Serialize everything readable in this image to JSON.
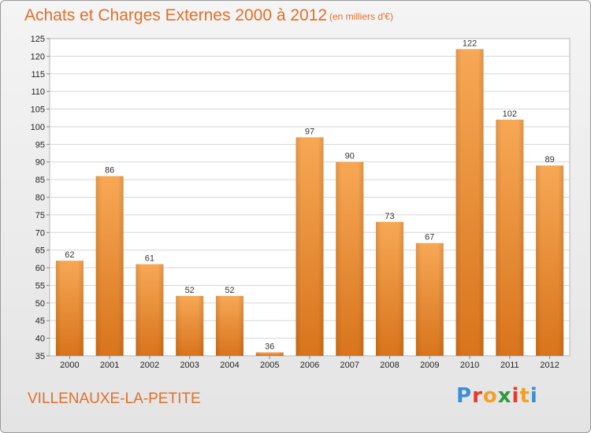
{
  "header": {
    "title": "Achats et Charges Externes 2000 à 2012",
    "subtitle": "(en milliers d'€)"
  },
  "footer": {
    "commune": "VILLENAUXE-LA-PETITE",
    "logo_letters": [
      "P",
      "r",
      "o",
      "x",
      "i",
      "t",
      "i"
    ],
    "logo_colors": [
      "#3b8fd6",
      "#e8392b",
      "#f2a124",
      "#2d9a3e",
      "#e8392b",
      "#f2a124",
      "#3b8fd6"
    ]
  },
  "chart_data": {
    "type": "bar",
    "categories": [
      "2000",
      "2001",
      "2002",
      "2003",
      "2004",
      "2005",
      "2006",
      "2007",
      "2008",
      "2009",
      "2010",
      "2011",
      "2012"
    ],
    "values": [
      62,
      86,
      61,
      52,
      52,
      36,
      97,
      90,
      73,
      67,
      122,
      102,
      89
    ],
    "title": "Achats et Charges Externes 2000 à 2012",
    "ylim": [
      35,
      125
    ],
    "yticks": [
      35,
      40,
      45,
      50,
      55,
      60,
      65,
      70,
      75,
      80,
      85,
      90,
      95,
      100,
      105,
      110,
      115,
      120,
      125
    ],
    "grid": true,
    "bar_color_light": "#f7a855",
    "bar_color_dark": "#d8741c"
  }
}
